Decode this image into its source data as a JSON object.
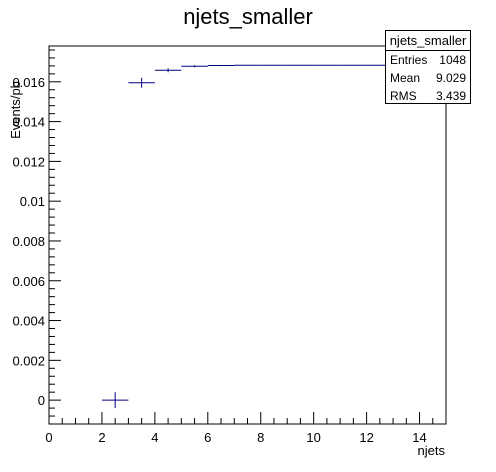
{
  "chart_data": {
    "type": "scatter",
    "title": "njets_smaller",
    "xlabel": "njets",
    "ylabel": "Events/pb",
    "xlim": [
      0,
      15
    ],
    "ylim": [
      -0.0012,
      0.0178
    ],
    "xticks": [
      0,
      2,
      4,
      6,
      8,
      10,
      12,
      14
    ],
    "yticks": [
      0,
      0.002,
      0.004,
      0.006,
      0.008,
      0.01,
      0.012,
      0.014,
      0.016
    ],
    "xtick_labels": [
      "0",
      "2",
      "4",
      "6",
      "8",
      "10",
      "12",
      "14"
    ],
    "ytick_labels": [
      "0",
      "0.002",
      "0.004",
      "0.006",
      "0.008",
      "0.01",
      "0.012",
      "0.014",
      "0.016"
    ],
    "series": [
      {
        "color": "#00007f",
        "points": [
          {
            "x": 2.5,
            "y": 0.0,
            "xerr": 0.5,
            "yerr": 0.0004
          },
          {
            "x": 3.5,
            "y": 0.01595,
            "xerr": 0.5,
            "yerr": 0.00025
          },
          {
            "x": 4.5,
            "y": 0.01658,
            "xerr": 0.5,
            "yerr": 0.0001
          },
          {
            "x": 5.5,
            "y": 0.01678,
            "xerr": 0.5,
            "yerr": 5e-05
          },
          {
            "x": 6.5,
            "y": 0.01682,
            "xerr": 0.5,
            "yerr": 3e-05
          },
          {
            "x": 7.5,
            "y": 0.01683,
            "xerr": 0.5,
            "yerr": 0.0
          },
          {
            "x": 8.5,
            "y": 0.01683,
            "xerr": 0.5,
            "yerr": 0.0
          },
          {
            "x": 9.5,
            "y": 0.01683,
            "xerr": 0.5,
            "yerr": 0.0
          },
          {
            "x": 10.5,
            "y": 0.01683,
            "xerr": 0.5,
            "yerr": 0.0
          },
          {
            "x": 11.5,
            "y": 0.01683,
            "xerr": 0.5,
            "yerr": 0.0
          },
          {
            "x": 12.5,
            "y": 0.01683,
            "xerr": 0.5,
            "yerr": 0.0
          },
          {
            "x": 13.5,
            "y": 0.01683,
            "xerr": 0.5,
            "yerr": 0.0
          },
          {
            "x": 14.5,
            "y": 0.01683,
            "xerr": 0.5,
            "yerr": 0.0
          }
        ]
      }
    ],
    "grid": false,
    "legend": "none",
    "stats": {
      "title": "njets_smaller",
      "rows": [
        {
          "label": "Entries",
          "value": "1048"
        },
        {
          "label": "Mean",
          "value": "9.029"
        },
        {
          "label": "RMS",
          "value": "3.439"
        }
      ]
    }
  }
}
